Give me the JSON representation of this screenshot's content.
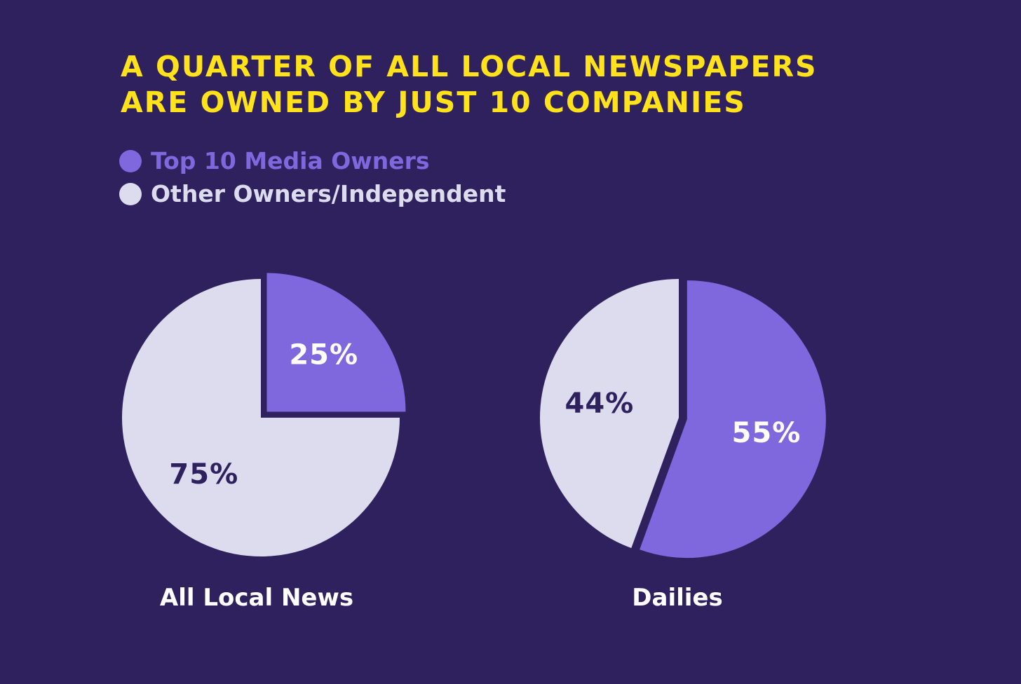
{
  "title_lines": [
    "A quarter of all local newspapers",
    "are owned by just 10 companies"
  ],
  "colors": {
    "background": "#2f215d",
    "title": "#ffe21a",
    "top10": "#7f67de",
    "other": "#dcdcee",
    "label_on_top10": "#ffffff",
    "label_on_other": "#2f215d"
  },
  "legend": [
    {
      "label": "Top 10 Media Owners",
      "series": "top10"
    },
    {
      "label": "Other Owners/Independent",
      "series": "other"
    }
  ],
  "chart_data": [
    {
      "type": "pie",
      "title": "All Local News",
      "slices": [
        {
          "name": "Top 10 Media Owners",
          "series": "top10",
          "value": 25,
          "label": "25%",
          "exploded": true
        },
        {
          "name": "Other Owners/Independent",
          "series": "other",
          "value": 75,
          "label": "75%",
          "exploded": false
        }
      ]
    },
    {
      "type": "pie",
      "title": "Dailies",
      "slices": [
        {
          "name": "Top 10 Media Owners",
          "series": "top10",
          "value": 55,
          "label": "55%",
          "exploded": true
        },
        {
          "name": "Other Owners/Independent",
          "series": "other",
          "value": 44,
          "label": "44%",
          "exploded": false
        }
      ]
    }
  ]
}
